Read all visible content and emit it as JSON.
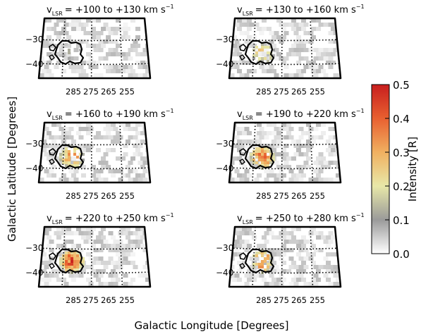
{
  "figure": {
    "x_axis_label": "Galactic Longitude [Degrees]",
    "y_axis_label": "Galactic Latitude [Degrees]"
  },
  "colorbar": {
    "label": "Intensity [R]",
    "ticks": [
      "0.0",
      "0.1",
      "0.2",
      "0.3",
      "0.4",
      "0.5"
    ],
    "stops": [
      "#ffffff",
      "#9a9a9a",
      "#e8e8a8",
      "#f0b060",
      "#e86030",
      "#c81e1e"
    ]
  },
  "chart_data": {
    "type": "heatmap",
    "value_range": [
      0.0,
      0.5
    ],
    "x_ticks": [
      "285",
      "275",
      "265",
      "255"
    ],
    "y_ticks": [
      "−30",
      "−40"
    ],
    "panels": [
      {
        "prefix": "v",
        "subscript": "LSR",
        "range": "= +100 to +130 km s",
        "exponent": "−1",
        "peak_intensity": 0.15,
        "blob_coverage": 0.1
      },
      {
        "prefix": "v",
        "subscript": "LSR",
        "range": "= +130 to +160 km s",
        "exponent": "−1",
        "peak_intensity": 0.3,
        "blob_coverage": 0.25
      },
      {
        "prefix": "v",
        "subscript": "LSR",
        "range": "= +160 to +190 km s",
        "exponent": "−1",
        "peak_intensity": 0.4,
        "blob_coverage": 0.55
      },
      {
        "prefix": "v",
        "subscript": "LSR",
        "range": "= +190 to +220 km s",
        "exponent": "−1",
        "peak_intensity": 0.45,
        "blob_coverage": 0.75
      },
      {
        "prefix": "v",
        "subscript": "LSR",
        "range": "= +220 to +250 km s",
        "exponent": "−1",
        "peak_intensity": 0.5,
        "blob_coverage": 0.95
      },
      {
        "prefix": "v",
        "subscript": "LSR",
        "range": "= +250 to +280 km s",
        "exponent": "−1",
        "peak_intensity": 0.45,
        "blob_coverage": 0.35
      }
    ]
  }
}
